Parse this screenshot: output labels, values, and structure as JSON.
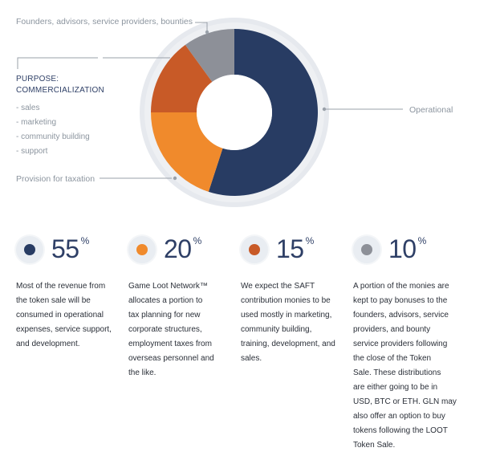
{
  "chart_data": {
    "type": "donut",
    "series": [
      {
        "label": "Operational",
        "value": 55,
        "color": "#283c63"
      },
      {
        "label": "Provision for taxation",
        "value": 20,
        "color": "#f08a2c"
      },
      {
        "label": "PURPOSE: COMMERCIALIZATION",
        "value": 15,
        "color": "#c85a27"
      },
      {
        "label": "Founders, advisors, service providers, bounties",
        "value": 10,
        "color": "#8d9098"
      }
    ]
  },
  "labels": {
    "founders": "Founders, advisors, service providers, bounties",
    "purpose_line1": "PURPOSE:",
    "purpose_line2": "COMMERCIALIZATION",
    "purpose_items": [
      "- sales",
      "- marketing",
      "- community building",
      "- support"
    ],
    "operational": "Operational",
    "taxation": "Provision for taxation"
  },
  "stats": [
    {
      "value": "55",
      "unit": "%",
      "color": "#283c63",
      "lines": [
        "Most of the revenue from",
        "the token sale will be",
        "consumed in operational",
        "expenses, service support,",
        "and development."
      ]
    },
    {
      "value": "20",
      "unit": "%",
      "color": "#f08a2c",
      "lines": [
        "Game Loot Network™",
        "allocates a portion to",
        "tax planning for new",
        "corporate structures,",
        "employment taxes from",
        "overseas personnel and",
        "the like."
      ]
    },
    {
      "value": "15",
      "unit": "%",
      "color": "#c85a27",
      "lines": [
        "We expect the SAFT",
        "contribution monies to be",
        "used mostly in marketing,",
        "community building,",
        "training, development, and",
        "sales."
      ]
    },
    {
      "value": "10",
      "unit": "%",
      "color": "#8d9098",
      "lines": [
        "A portion of the monies are",
        "kept to pay bonuses to the",
        "founders, advisors, service",
        "providers, and bounty",
        "service providers following",
        "the close of the Token",
        "Sale. These distributions",
        "are either going to be in",
        "USD, BTC or ETH. GLN may",
        "also offer an option to buy",
        "tokens following the LOOT",
        "Token Sale."
      ]
    }
  ]
}
